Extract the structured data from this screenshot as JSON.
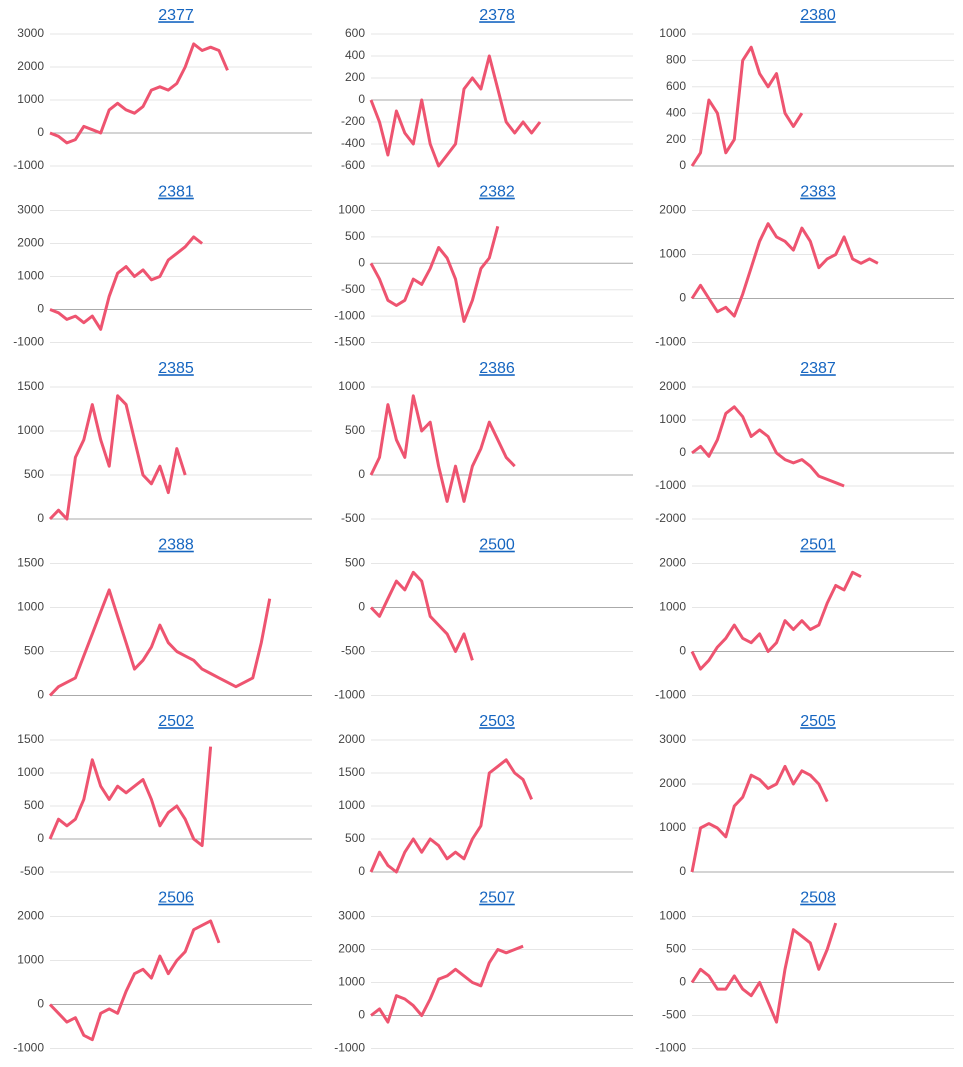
{
  "chart_data": [
    {
      "type": "line",
      "title": "2377",
      "values": [
        0,
        -100,
        -300,
        -200,
        200,
        100,
        0,
        700,
        900,
        700,
        600,
        800,
        1300,
        1400,
        1300,
        1500,
        2000,
        2700,
        2500,
        2600,
        2500,
        1900
      ],
      "ylim": [
        -1000,
        3000
      ],
      "yticks": [
        -1000,
        0,
        1000,
        2000,
        3000
      ],
      "color": "#ee5470",
      "grid": true
    },
    {
      "type": "line",
      "title": "2378",
      "values": [
        0,
        -200,
        -500,
        -100,
        -300,
        -400,
        0,
        -400,
        -600,
        -500,
        -400,
        100,
        200,
        100,
        400,
        100,
        -200,
        -300,
        -200,
        -300,
        -200
      ],
      "ylim": [
        -600,
        600
      ],
      "yticks": [
        -600,
        -400,
        -200,
        0,
        200,
        400,
        600
      ],
      "color": "#ee5470",
      "grid": true
    },
    {
      "type": "line",
      "title": "2380",
      "values": [
        0,
        100,
        500,
        400,
        100,
        200,
        800,
        900,
        700,
        600,
        700,
        400,
        300,
        400
      ],
      "ylim": [
        0,
        1000
      ],
      "yticks": [
        0,
        200,
        400,
        600,
        800,
        1000
      ],
      "color": "#ee5470",
      "grid": true
    },
    {
      "type": "line",
      "title": "2381",
      "values": [
        0,
        -100,
        -300,
        -200,
        -400,
        -200,
        -600,
        400,
        1100,
        1300,
        1000,
        1200,
        900,
        1000,
        1500,
        1700,
        1900,
        2200,
        2000
      ],
      "ylim": [
        -1000,
        3000
      ],
      "yticks": [
        -1000,
        0,
        1000,
        2000,
        3000
      ],
      "color": "#ee5470",
      "grid": true
    },
    {
      "type": "line",
      "title": "2382",
      "values": [
        0,
        -300,
        -700,
        -800,
        -700,
        -300,
        -400,
        -100,
        300,
        100,
        -300,
        -1100,
        -700,
        -100,
        100,
        700
      ],
      "ylim": [
        -1500,
        1000
      ],
      "yticks": [
        -1500,
        -1000,
        -500,
        0,
        500,
        1000
      ],
      "color": "#ee5470",
      "grid": true
    },
    {
      "type": "line",
      "title": "2383",
      "values": [
        0,
        300,
        0,
        -300,
        -200,
        -400,
        100,
        700,
        1300,
        1700,
        1400,
        1300,
        1100,
        1600,
        1300,
        700,
        900,
        1000,
        1400,
        900,
        800,
        900,
        800
      ],
      "ylim": [
        -1000,
        2000
      ],
      "yticks": [
        -1000,
        0,
        1000,
        2000
      ],
      "color": "#ee5470",
      "grid": true
    },
    {
      "type": "line",
      "title": "2385",
      "values": [
        0,
        100,
        0,
        700,
        900,
        1300,
        900,
        600,
        1400,
        1300,
        900,
        500,
        400,
        600,
        300,
        800,
        500
      ],
      "ylim": [
        0,
        1500
      ],
      "yticks": [
        0,
        500,
        1000,
        1500
      ],
      "color": "#ee5470",
      "grid": true
    },
    {
      "type": "line",
      "title": "2386",
      "values": [
        0,
        200,
        800,
        400,
        200,
        900,
        500,
        600,
        100,
        -300,
        100,
        -300,
        100,
        300,
        600,
        400,
        200,
        100
      ],
      "ylim": [
        -500,
        1000
      ],
      "yticks": [
        -500,
        0,
        500,
        1000
      ],
      "color": "#ee5470",
      "grid": true
    },
    {
      "type": "line",
      "title": "2387",
      "values": [
        0,
        200,
        -100,
        400,
        1200,
        1400,
        1100,
        500,
        700,
        500,
        0,
        -200,
        -300,
        -200,
        -400,
        -700,
        -800,
        -900,
        -1000
      ],
      "ylim": [
        -2000,
        2000
      ],
      "yticks": [
        -2000,
        -1000,
        0,
        1000,
        2000
      ],
      "color": "#ee5470",
      "grid": true
    },
    {
      "type": "line",
      "title": "2388",
      "values": [
        0,
        100,
        150,
        200,
        450,
        700,
        950,
        1200,
        900,
        600,
        300,
        400,
        550,
        800,
        600,
        500,
        450,
        400,
        300,
        250,
        200,
        150,
        100,
        150,
        200,
        600,
        1100
      ],
      "ylim": [
        0,
        1500
      ],
      "yticks": [
        0,
        500,
        1000,
        1500
      ],
      "color": "#ee5470",
      "grid": true
    },
    {
      "type": "line",
      "title": "2500",
      "values": [
        0,
        -100,
        100,
        300,
        200,
        400,
        300,
        -100,
        -200,
        -300,
        -500,
        -300,
        -600
      ],
      "ylim": [
        -1000,
        500
      ],
      "yticks": [
        -1000,
        -500,
        0,
        500
      ],
      "color": "#ee5470",
      "grid": true
    },
    {
      "type": "line",
      "title": "2501",
      "values": [
        0,
        -400,
        -200,
        100,
        300,
        600,
        300,
        200,
        400,
        0,
        200,
        700,
        500,
        700,
        500,
        600,
        1100,
        1500,
        1400,
        1800,
        1700
      ],
      "ylim": [
        -1000,
        2000
      ],
      "yticks": [
        -1000,
        0,
        1000,
        2000
      ],
      "color": "#ee5470",
      "grid": true
    },
    {
      "type": "line",
      "title": "2502",
      "values": [
        0,
        300,
        200,
        300,
        600,
        1200,
        800,
        600,
        800,
        700,
        800,
        900,
        600,
        200,
        400,
        500,
        300,
        0,
        -100,
        1400
      ],
      "ylim": [
        -500,
        1500
      ],
      "yticks": [
        -500,
        0,
        500,
        1000,
        1500
      ],
      "color": "#ee5470",
      "grid": true
    },
    {
      "type": "line",
      "title": "2503",
      "values": [
        0,
        300,
        100,
        0,
        300,
        500,
        300,
        500,
        400,
        200,
        300,
        200,
        500,
        700,
        1500,
        1600,
        1700,
        1500,
        1400,
        1100
      ],
      "ylim": [
        0,
        2000
      ],
      "yticks": [
        0,
        500,
        1000,
        1500,
        2000
      ],
      "color": "#ee5470",
      "grid": true
    },
    {
      "type": "line",
      "title": "2505",
      "values": [
        0,
        1000,
        1100,
        1000,
        800,
        1500,
        1700,
        2200,
        2100,
        1900,
        2000,
        2400,
        2000,
        2300,
        2200,
        2000,
        1600
      ],
      "ylim": [
        0,
        3000
      ],
      "yticks": [
        0,
        1000,
        2000,
        3000
      ],
      "color": "#ee5470",
      "grid": true
    },
    {
      "type": "line",
      "title": "2506",
      "values": [
        0,
        -200,
        -400,
        -300,
        -700,
        -800,
        -200,
        -100,
        -200,
        300,
        700,
        800,
        600,
        1100,
        700,
        1000,
        1200,
        1700,
        1800,
        1900,
        1400
      ],
      "ylim": [
        -1000,
        2000
      ],
      "yticks": [
        -1000,
        0,
        1000,
        2000
      ],
      "color": "#ee5470",
      "grid": true
    },
    {
      "type": "line",
      "title": "2507",
      "values": [
        0,
        200,
        -200,
        600,
        500,
        300,
        0,
        500,
        1100,
        1200,
        1400,
        1200,
        1000,
        900,
        1600,
        2000,
        1900,
        2000,
        2100
      ],
      "ylim": [
        -1000,
        3000
      ],
      "yticks": [
        -1000,
        0,
        1000,
        2000,
        3000
      ],
      "color": "#ee5470",
      "grid": true
    },
    {
      "type": "line",
      "title": "2508",
      "values": [
        0,
        200,
        100,
        -100,
        -100,
        100,
        -100,
        -200,
        0,
        -300,
        -600,
        200,
        800,
        700,
        600,
        200,
        500,
        900
      ],
      "ylim": [
        -1000,
        1000
      ],
      "yticks": [
        -1000,
        -500,
        0,
        500,
        1000
      ],
      "color": "#ee5470",
      "grid": true
    }
  ]
}
